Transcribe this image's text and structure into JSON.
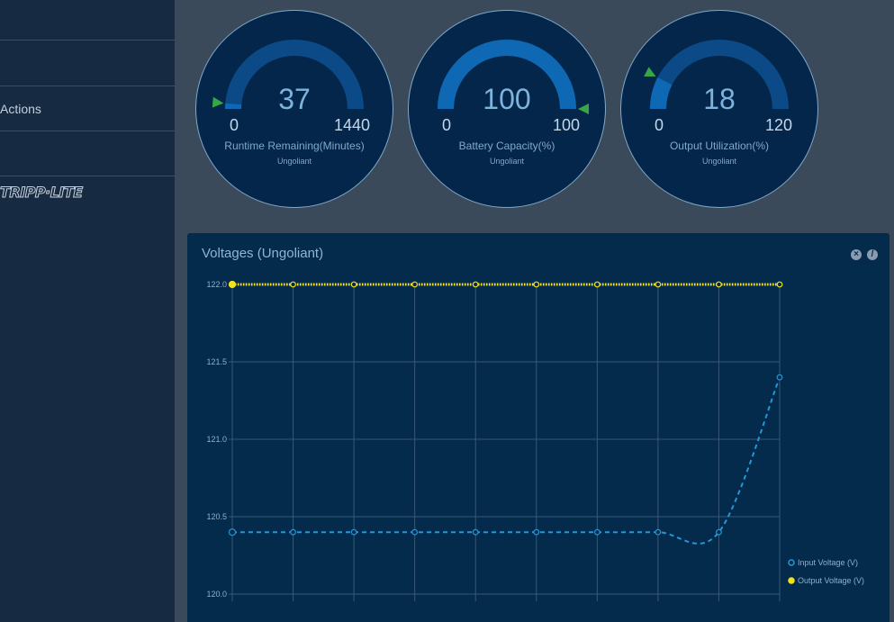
{
  "sidebar": {
    "items": [
      {
        "label": ""
      },
      {
        "label": "Actions"
      },
      {
        "label": ""
      }
    ],
    "logo_text": "TRIPP·LITE"
  },
  "gauges": [
    {
      "value": "37",
      "min": "0",
      "max": "1440",
      "label": "Runtime Remaining(Minutes)",
      "device": "Ungoliant",
      "fraction": 0.0257
    },
    {
      "value": "100",
      "min": "0",
      "max": "100",
      "label": "Battery Capacity(%)",
      "device": "Ungoliant",
      "fraction": 1.0
    },
    {
      "value": "18",
      "min": "0",
      "max": "120",
      "label": "Output Utilization(%)",
      "device": "Ungoliant",
      "fraction": 0.15
    }
  ],
  "colors": {
    "gauge_track": "#0b4a86",
    "gauge_fill": "#0e68b4",
    "marker": "#35a845",
    "input_series": "#2596d6",
    "output_series": "#f3e11c"
  },
  "chart_data": {
    "type": "line",
    "title": "Voltages (Ungoliant)",
    "ylim": [
      120.0,
      122.0
    ],
    "yticks": [
      "120.0",
      "120.5",
      "121.0",
      "121.5",
      "122.0"
    ],
    "x": [
      1,
      2,
      3,
      4,
      5,
      6,
      7,
      8,
      9,
      10
    ],
    "grid": true,
    "legend_position": "bottom-right",
    "series": [
      {
        "name": "Input Voltage (V)",
        "values": [
          120.4,
          120.4,
          120.4,
          120.4,
          120.4,
          120.4,
          120.4,
          120.4,
          120.4,
          121.4
        ]
      },
      {
        "name": "Output Voltage (V)",
        "values": [
          122.0,
          122.0,
          122.0,
          122.0,
          122.0,
          122.0,
          122.0,
          122.0,
          122.0,
          122.0
        ]
      }
    ]
  }
}
